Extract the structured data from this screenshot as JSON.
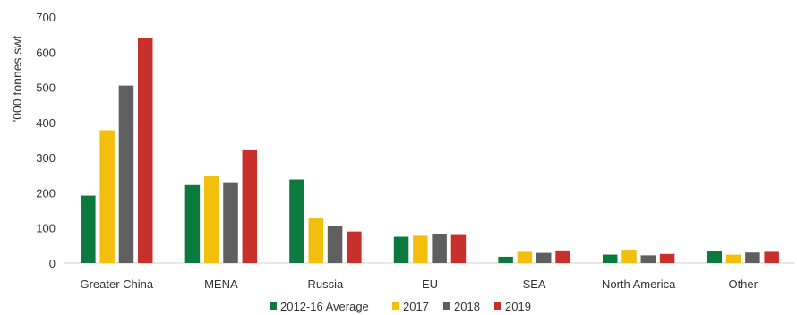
{
  "chart_data": {
    "type": "bar",
    "ylabel": "'000 tonnes swt",
    "ylim": [
      0,
      700
    ],
    "yticks": [
      0,
      100,
      200,
      300,
      400,
      500,
      600,
      700
    ],
    "categories": [
      "Greater China",
      "MENA",
      "Russia",
      "EU",
      "SEA",
      "North America",
      "Other"
    ],
    "series": [
      {
        "name": "2012-16 Average",
        "color": "#0c7a3e",
        "values": [
          192,
          222,
          238,
          75,
          18,
          24,
          33
        ]
      },
      {
        "name": "2017",
        "color": "#f2c00c",
        "values": [
          378,
          247,
          127,
          78,
          32,
          38,
          24
        ]
      },
      {
        "name": "2018",
        "color": "#5f5f5f",
        "values": [
          505,
          230,
          106,
          84,
          29,
          22,
          30
        ]
      },
      {
        "name": "2019",
        "color": "#c8302b",
        "values": [
          641,
          321,
          90,
          80,
          36,
          26,
          32
        ]
      }
    ],
    "grid": false,
    "legend": "bottom"
  }
}
